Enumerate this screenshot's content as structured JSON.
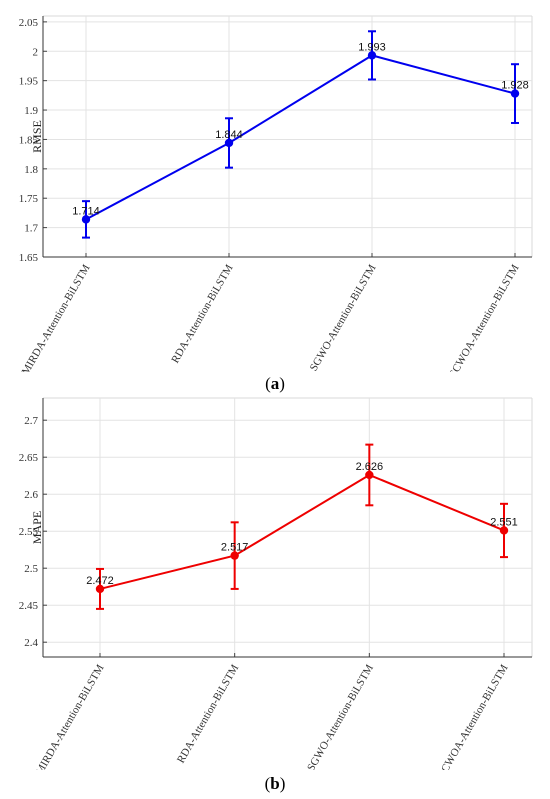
{
  "chart_data": [
    {
      "type": "line",
      "panel": "a",
      "categories": [
        "MIRDA-Attention-BiLSTM",
        "RDA-Attention-BiLSTM",
        "SGWO-Attention-BiLSTM",
        "DECWOA-Attention-BiLSTM"
      ],
      "series": [
        {
          "values": [
            1.714,
            1.844,
            1.993,
            1.928
          ],
          "error_low": [
            1.683,
            1.802,
            1.952,
            1.878
          ],
          "error_high": [
            1.745,
            1.886,
            2.034,
            1.978
          ],
          "color": "#0000ee"
        }
      ],
      "data_labels": [
        "1.714",
        "1.844",
        "1.993",
        "1.928"
      ],
      "ylabel": "RMSE",
      "xlabel": "",
      "ylim": [
        1.65,
        2.06
      ],
      "yticks": [
        "1.65",
        "1.7",
        "1.75",
        "1.8",
        "1.85",
        "1.9",
        "1.95",
        "2",
        "2.05"
      ],
      "grid": true
    },
    {
      "type": "line",
      "panel": "b",
      "categories": [
        "MIRDA-Attention-BiLSTM",
        "RDA-Attention-BiLSTM",
        "SGWO-Attention-BiLSTM",
        "DECWOA-Attention-BiLSTM"
      ],
      "series": [
        {
          "values": [
            2.472,
            2.517,
            2.626,
            2.551
          ],
          "error_low": [
            2.445,
            2.472,
            2.585,
            2.515
          ],
          "error_high": [
            2.499,
            2.562,
            2.667,
            2.587
          ],
          "color": "#ee0000"
        }
      ],
      "data_labels": [
        "2.472",
        "2.517",
        "2.626",
        "2.551"
      ],
      "ylabel": "MAPE",
      "xlabel": "",
      "ylim": [
        2.38,
        2.73
      ],
      "yticks": [
        "2.4",
        "2.45",
        "2.5",
        "2.55",
        "2.6",
        "2.65",
        "2.7"
      ],
      "grid": true
    }
  ],
  "captions": [
    {
      "prefix": "(",
      "letter": "a",
      "suffix": ")"
    },
    {
      "prefix": "(",
      "letter": "b",
      "suffix": ")"
    }
  ]
}
